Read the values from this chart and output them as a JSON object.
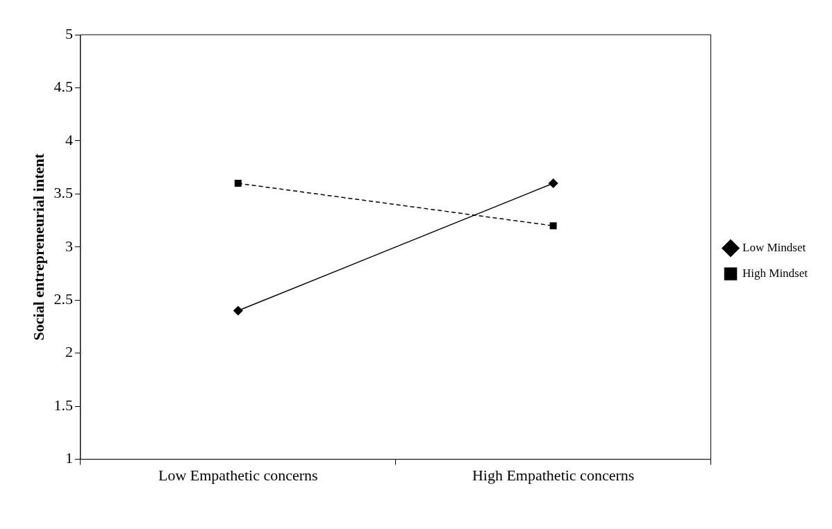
{
  "chart_data": {
    "type": "line",
    "ylabel": "Social entrepreneurial intent",
    "categories": [
      "Low Empathetic concerns",
      "High Empathetic concerns"
    ],
    "series": [
      {
        "name": "Low Mindset",
        "color": "#000000",
        "values": [
          2.4,
          3.6
        ],
        "marker": "diamond",
        "line_style": "solid"
      },
      {
        "name": "High Mindset",
        "color": "#000000",
        "values": [
          3.6,
          3.2
        ],
        "marker": "square",
        "line_style": "dashed"
      }
    ],
    "ylim": [
      1,
      5
    ],
    "yticks": [
      1,
      1.5,
      2,
      2.5,
      3,
      3.5,
      4,
      4.5,
      5
    ],
    "grid": false,
    "legend": "right"
  }
}
